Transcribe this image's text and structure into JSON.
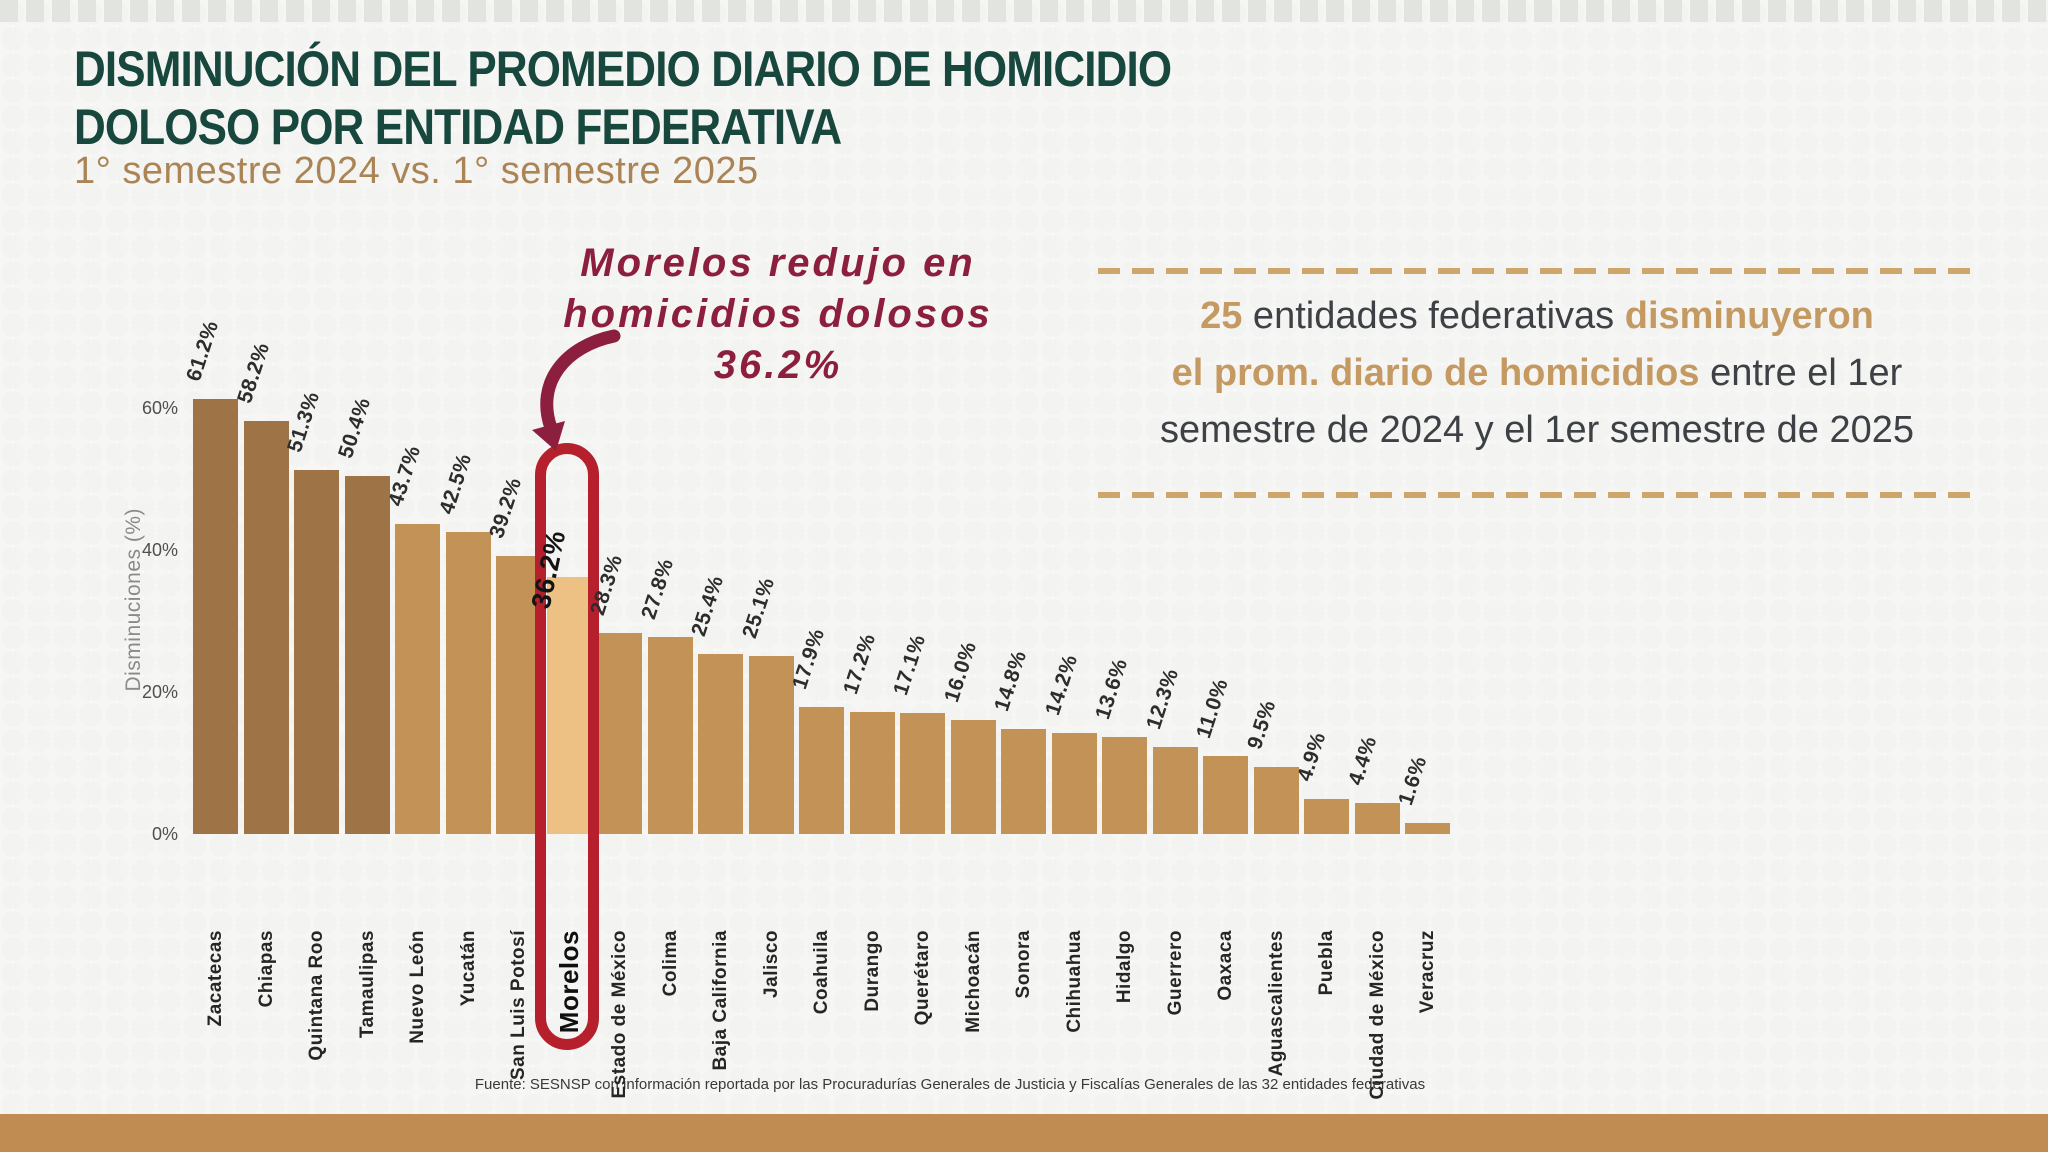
{
  "title": {
    "line1": "DISMINUCIÓN DEL PROMEDIO DIARIO DE HOMICIDIO",
    "line2": "DOLOSO POR ENTIDAD FEDERATIVA"
  },
  "subtitle": "1° semestre 2024 vs. 1° semestre 2025",
  "annotation": {
    "line1": "Morelos redujo en",
    "line2": "homicidios dolosos",
    "line3": "36.2%",
    "color": "#8c1f3e"
  },
  "stats_box": {
    "lines": [
      [
        {
          "text": "25",
          "style": "gold"
        },
        {
          "text": " entidades federativas ",
          "style": "dark"
        },
        {
          "text": "disminuyeron",
          "style": "gold"
        }
      ],
      [
        {
          "text": "el prom. diario de homicidios",
          "style": "gold"
        },
        {
          "text": " entre el 1er",
          "style": "dark"
        }
      ],
      [
        {
          "text": "semestre de 2024 y el 1er semestre de 2025",
          "style": "dark"
        }
      ]
    ],
    "dash_color": "#cda66b"
  },
  "chart_data": {
    "type": "bar",
    "title": "",
    "xlabel": "",
    "ylabel": "Disminuciones (%)",
    "ylim": [
      0,
      65
    ],
    "grid": false,
    "yticks": [
      {
        "label": "0%",
        "value": 0
      },
      {
        "label": "20%",
        "value": 20
      },
      {
        "label": "40%",
        "value": 40
      },
      {
        "label": "60%",
        "value": 60
      }
    ],
    "categories": [
      "Zacatecas",
      "Chiapas",
      "Quintana Roo",
      "Tamaulipas",
      "Nuevo León",
      "Yucatán",
      "San Luis Potosí",
      "Morelos",
      "Estado de México",
      "Colima",
      "Baja California",
      "Jalisco",
      "Coahuila",
      "Durango",
      "Querétaro",
      "Michoacán",
      "Sonora",
      "Chihuahua",
      "Hidalgo",
      "Guerrero",
      "Oaxaca",
      "Aguascalientes",
      "Puebla",
      "Ciudad de México",
      "Veracruz"
    ],
    "values": [
      61.2,
      58.2,
      51.3,
      50.4,
      43.7,
      42.5,
      39.2,
      36.2,
      28.3,
      27.8,
      25.4,
      25.1,
      17.9,
      17.2,
      17.1,
      16.0,
      14.8,
      14.2,
      13.6,
      12.3,
      11.0,
      9.5,
      4.9,
      4.4,
      1.6
    ],
    "value_label_format": "{v}%",
    "highlight": {
      "category": "Morelos",
      "value": 36.2,
      "index": 7,
      "outline_color": "#b5202c"
    },
    "colors": {
      "dark_bars": "#9e7346",
      "medium_bars": "#c29257",
      "highlight_bar": "#ecc183",
      "dark_bar_count": 4
    }
  },
  "footer": {
    "source": "Fuente: SESNSP con información reportada por las Procuradurías Generales de Justicia y Fiscalías Generales de las 32 entidades federativas"
  },
  "theme": {
    "title_color": "#17473d",
    "subtitle_color": "#ab8455",
    "gold_text": "#c49a62",
    "bottom_bar_color": "#c08c51"
  }
}
